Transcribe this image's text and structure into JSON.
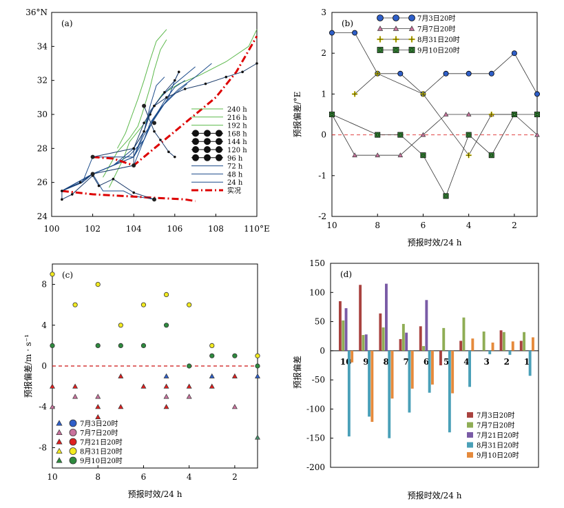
{
  "chart_data": [
    {
      "panel_label": "(a)",
      "type": "line",
      "xlim": [
        100,
        110
      ],
      "ylim": [
        24,
        36
      ],
      "x_ticks": [
        "100",
        "102",
        "104",
        "106",
        "108",
        "110°E"
      ],
      "y_ticks": [
        "24",
        "26",
        "28",
        "30",
        "32",
        "34",
        "36°N"
      ],
      "grid": false,
      "legend_position": "right",
      "series": [
        {
          "name": "240 h",
          "color": "#5bb84a",
          "points": [
            [
              102.8,
              25.7
            ],
            [
              103.5,
              27.4
            ],
            [
              103.8,
              28.4
            ],
            [
              104.2,
              29.0
            ],
            [
              104.6,
              29.6
            ],
            [
              105.0,
              30.5
            ],
            [
              105.4,
              31.2
            ],
            [
              106.2,
              31.8
            ],
            [
              107.2,
              32.3
            ],
            [
              108.5,
              33.1
            ],
            [
              109.6,
              34.0
            ],
            [
              110.0,
              35.0
            ]
          ]
        },
        {
          "name": "216 h",
          "color": "#5bb84a",
          "points": [
            [
              102.5,
              26.3
            ],
            [
              103.2,
              27.8
            ],
            [
              103.8,
              28.6
            ],
            [
              104.2,
              29.3
            ],
            [
              104.4,
              30.0
            ],
            [
              104.6,
              30.8
            ],
            [
              104.8,
              31.6
            ],
            [
              105.0,
              32.6
            ],
            [
              105.3,
              33.8
            ],
            [
              105.6,
              34.4
            ]
          ]
        },
        {
          "name": "192 h",
          "color": "#5bb84a",
          "points": [
            [
              103.2,
              28.0
            ],
            [
              103.6,
              28.9
            ],
            [
              103.9,
              29.9
            ],
            [
              104.2,
              30.9
            ],
            [
              104.5,
              32.0
            ],
            [
              104.8,
              33.2
            ],
            [
              105.1,
              34.3
            ],
            [
              105.6,
              35.0
            ]
          ]
        },
        {
          "name": "168 h",
          "color": "#1a4a8a",
          "points": [
            [
              100.5,
              25.5
            ],
            [
              101.4,
              26.0
            ],
            [
              102.0,
              26.5
            ],
            [
              103.0,
              27.0
            ],
            [
              104.0,
              27.5
            ],
            [
              104.5,
              28.5
            ],
            [
              104.8,
              29.5
            ],
            [
              105.2,
              30.2
            ],
            [
              105.6,
              30.8
            ],
            [
              106.2,
              31.5
            ],
            [
              107.0,
              32.2
            ],
            [
              107.8,
              33.0
            ]
          ]
        },
        {
          "name": "144 h",
          "color": "#1a4a8a",
          "points": [
            [
              100.5,
              25.5
            ],
            [
              102.0,
              26.5
            ],
            [
              103.0,
              27.0
            ],
            [
              103.8,
              27.6
            ],
            [
              104.5,
              28.5
            ],
            [
              104.9,
              29.6
            ],
            [
              105.4,
              30.5
            ],
            [
              106.0,
              31.2
            ],
            [
              106.6,
              31.8
            ]
          ]
        },
        {
          "name": "120 h",
          "color": "#1a4a8a",
          "points": [
            [
              100.5,
              25.5
            ],
            [
              102.0,
              26.5
            ],
            [
              103.0,
              27.0
            ],
            [
              104.0,
              28.0
            ],
            [
              104.5,
              29.0
            ],
            [
              104.8,
              30.2
            ],
            [
              105.3,
              31.0
            ],
            [
              106.0,
              31.8
            ],
            [
              107.0,
              32.8
            ]
          ]
        },
        {
          "name": "96 h",
          "color": "#1a4a8a",
          "points": [
            [
              100.5,
              25.5
            ],
            [
              102.0,
              26.5
            ],
            [
              103.0,
              27.0
            ],
            [
              104.0,
              27.5
            ],
            [
              104.5,
              28.8
            ],
            [
              105.1,
              29.9
            ],
            [
              105.7,
              31.0
            ],
            [
              106.0,
              32.0
            ],
            [
              106.2,
              32.5
            ]
          ]
        },
        {
          "name": "72 h",
          "color": "#1a4a8a",
          "points": [
            [
              100.5,
              25.5
            ],
            [
              101.5,
              26.0
            ],
            [
              102.0,
              27.5
            ],
            [
              104.0,
              27.5
            ],
            [
              104.5,
              29.0
            ],
            [
              104.8,
              30.5
            ],
            [
              105.1,
              31.7
            ],
            [
              105.5,
              32.2
            ]
          ]
        },
        {
          "name": "48 h",
          "color": "#1a4a8a",
          "points": [
            [
              100.5,
              25.5
            ],
            [
              102.0,
              26.5
            ],
            [
              104.0,
              27.0
            ],
            [
              104.5,
              28.5
            ],
            [
              105.0,
              29.8
            ],
            [
              105.5,
              30.8
            ],
            [
              106.0,
              31.6
            ],
            [
              106.5,
              32.0
            ]
          ]
        },
        {
          "name": "24 h",
          "color": "#1a4a8a",
          "points": [
            [
              100.5,
              25.5
            ],
            [
              101.5,
              26.0
            ],
            [
              102.0,
              26.5
            ],
            [
              102.5,
              25.5
            ],
            [
              103.5,
              25.5
            ],
            [
              104.0,
              25.2
            ],
            [
              105.0,
              25.0
            ]
          ]
        },
        {
          "name": "实况",
          "color": "#dd0000",
          "points": [
            [
              100.5,
              25.5
            ],
            [
              102.0,
              25.3
            ],
            [
              103.5,
              25.2
            ],
            [
              105.0,
              25.1
            ],
            [
              106.5,
              25.0
            ],
            [
              107.0,
              24.9
            ]
          ]
        },
        {
          "name": "",
          "color": "#dd0000",
          "points": [
            [
              102.0,
              27.5
            ],
            [
              103.0,
              27.4
            ],
            [
              104.0,
              27.0
            ],
            [
              105.0,
              28.0
            ],
            [
              106.0,
              29.0
            ],
            [
              107.0,
              30.0
            ],
            [
              108.0,
              31.0
            ],
            [
              109.0,
              32.5
            ],
            [
              110.0,
              34.6
            ]
          ]
        }
      ],
      "forecast_tracks": [
        {
          "color": "#222",
          "points": [
            [
              100.5,
              25.5
            ],
            [
              101.4,
              26.0
            ],
            [
              102.0,
              26.5
            ],
            [
              104.0,
              27.0
            ],
            [
              104.0,
              28.0
            ],
            [
              104.5,
              29.0
            ],
            [
              104.8,
              30.0
            ],
            [
              105.0,
              30.5
            ],
            [
              105.5,
              31.3
            ],
            [
              106.0,
              32.0
            ],
            [
              106.2,
              32.5
            ]
          ]
        },
        {
          "color": "#222",
          "points": [
            [
              102.0,
              27.5
            ],
            [
              104.0,
              28.0
            ],
            [
              104.5,
              29.5
            ],
            [
              105.0,
              30.5
            ],
            [
              105.6,
              31.0
            ],
            [
              106.5,
              31.5
            ],
            [
              107.5,
              31.8
            ],
            [
              108.5,
              32.2
            ],
            [
              109.3,
              32.5
            ],
            [
              110.0,
              33.0
            ]
          ]
        },
        {
          "color": "#222",
          "points": [
            [
              100.5,
              25.5
            ],
            [
              100.5,
              25.0
            ],
            [
              101.0,
              25.3
            ],
            [
              102.0,
              26.4
            ],
            [
              102.3,
              25.8
            ],
            [
              103.0,
              26.2
            ],
            [
              104.0,
              25.4
            ],
            [
              105.0,
              25.0
            ]
          ]
        },
        {
          "color": "#222",
          "points": [
            [
              104.5,
              30.5
            ],
            [
              105.0,
              29.0
            ],
            [
              105.3,
              28.5
            ],
            [
              105.7,
              27.8
            ],
            [
              106.0,
              27.5
            ]
          ]
        }
      ],
      "legend_entries": [
        "240 h",
        "216 h",
        "192 h",
        "168 h",
        "144 h",
        "120 h",
        "96 h",
        "72 h",
        "48 h",
        "24 h",
        "实况"
      ]
    },
    {
      "panel_label": "(b)",
      "type": "line",
      "xlabel": "预报时效/24 h",
      "ylabel": "预报偏差/°E",
      "xlim": [
        10,
        1
      ],
      "ylim": [
        -2,
        3
      ],
      "x_ticks": [
        "10",
        "8",
        "6",
        "4",
        "2"
      ],
      "y_ticks": [
        "-2",
        "-1",
        "0",
        "1",
        "2",
        "3"
      ],
      "reference_line": 0,
      "legend_position": "top",
      "series": [
        {
          "name": "7月3日20时",
          "marker": "circle",
          "color": "#2f5fc8",
          "x": [
            10,
            9,
            8,
            7,
            6,
            5,
            4,
            3,
            2,
            1
          ],
          "values": [
            2.5,
            2.5,
            1.5,
            1.5,
            1.0,
            1.5,
            1.5,
            1.5,
            2.0,
            1.0
          ]
        },
        {
          "name": "7月7日20时",
          "marker": "triangle",
          "color": "#c9739d",
          "x": [
            10,
            9,
            8,
            7,
            6,
            5,
            4,
            3,
            2,
            1
          ],
          "values": [
            0.5,
            -0.5,
            -0.5,
            -0.5,
            0.0,
            0.5,
            0.5,
            0.5,
            0.5,
            0.0
          ]
        },
        {
          "name": "8月31日20时",
          "marker": "plus",
          "color": "#e8d800",
          "x": [
            9,
            8,
            6,
            4,
            3,
            2
          ],
          "values": [
            1.0,
            1.5,
            1.0,
            -0.5,
            0.5,
            0.5
          ]
        },
        {
          "name": "9月10日20时",
          "marker": "square",
          "color": "#3a8f3a",
          "x": [
            10,
            8,
            7,
            6,
            5,
            4,
            3,
            2,
            1
          ],
          "values": [
            0.5,
            0.0,
            0.0,
            -0.5,
            -1.5,
            0.0,
            -0.5,
            0.5,
            0.5
          ]
        }
      ]
    },
    {
      "panel_label": "(c)",
      "type": "scatter",
      "xlabel": "预报时效/24 h",
      "ylabel": "预报偏差/m · s⁻¹",
      "xlim": [
        10,
        1
      ],
      "ylim": [
        -10,
        10
      ],
      "x_ticks": [
        "10",
        "8",
        "6",
        "4",
        "2"
      ],
      "y_ticks": [
        "-8",
        "-4",
        "0",
        "4",
        "8"
      ],
      "reference_line": 0,
      "legend_position": "bottom-left",
      "series": [
        {
          "name": "7月3日20时",
          "color": "#2f5fc8",
          "x": [
            5,
            3,
            1
          ],
          "values": [
            -1,
            -1,
            -1
          ]
        },
        {
          "name": "7月7日20时",
          "color": "#c9739d",
          "x": [
            10,
            9,
            8,
            5,
            4,
            2
          ],
          "values": [
            -4,
            -3,
            -3,
            -3,
            -3,
            -4
          ]
        },
        {
          "name": "7月21日20时",
          "color": "#dd2020",
          "x": [
            10,
            9,
            8,
            8,
            7,
            7,
            6,
            5,
            5,
            4,
            3,
            2
          ],
          "values": [
            -2,
            -2,
            -4,
            -5,
            -1,
            -4,
            -2,
            -2,
            -4,
            -2,
            -2,
            -1
          ]
        },
        {
          "name": "8月31日20时",
          "color": "#f2ea20",
          "x": [
            10,
            9,
            8,
            7,
            6,
            5,
            4,
            3,
            1
          ],
          "values": [
            9,
            6,
            8,
            4,
            6,
            7,
            6,
            2,
            1
          ]
        },
        {
          "name": "9月10日20时",
          "color": "#2e8a3e",
          "x": [
            10,
            8,
            7,
            6,
            5,
            4,
            3,
            2,
            1
          ],
          "values": [
            2,
            2,
            2,
            2,
            4,
            0,
            1,
            1,
            0
          ]
        },
        {
          "name": "",
          "color": "#4a8a6a",
          "marker": "triangle",
          "x": [
            1
          ],
          "values": [
            -7
          ]
        }
      ]
    },
    {
      "panel_label": "(d)",
      "type": "bar",
      "xlabel": "预报时效/24 h",
      "ylabel": "预报偏差",
      "categories": [
        "10",
        "9",
        "8",
        "7",
        "6",
        "5",
        "4",
        "3",
        "2",
        "1"
      ],
      "ylim": [
        -200,
        150
      ],
      "y_ticks": [
        "-200",
        "-150",
        "-100",
        "-50",
        "0",
        "50",
        "100",
        "150"
      ],
      "legend_position": "bottom-right",
      "series": [
        {
          "name": "7月3日20时",
          "color": "#a9423f",
          "values": [
            85,
            113,
            64,
            20,
            42,
            -25,
            17,
            null,
            35,
            17
          ]
        },
        {
          "name": "7月7日20时",
          "color": "#8fad55",
          "values": [
            52,
            27,
            40,
            46,
            8,
            39,
            57,
            33,
            32,
            32
          ]
        },
        {
          "name": "7月21日20时",
          "color": "#7a5ba6",
          "values": [
            73,
            28,
            115,
            31,
            87,
            null,
            null,
            null,
            null,
            null
          ]
        },
        {
          "name": "8月31日20时",
          "color": "#4aa0b8",
          "values": [
            -147,
            -113,
            -150,
            -106,
            -72,
            -140,
            -62,
            -6,
            -7,
            -43
          ]
        },
        {
          "name": "9月10日20时",
          "color": "#e58a3c",
          "values": [
            -20,
            -122,
            -82,
            -65,
            -58,
            -73,
            21,
            14,
            16,
            23
          ]
        }
      ]
    }
  ]
}
